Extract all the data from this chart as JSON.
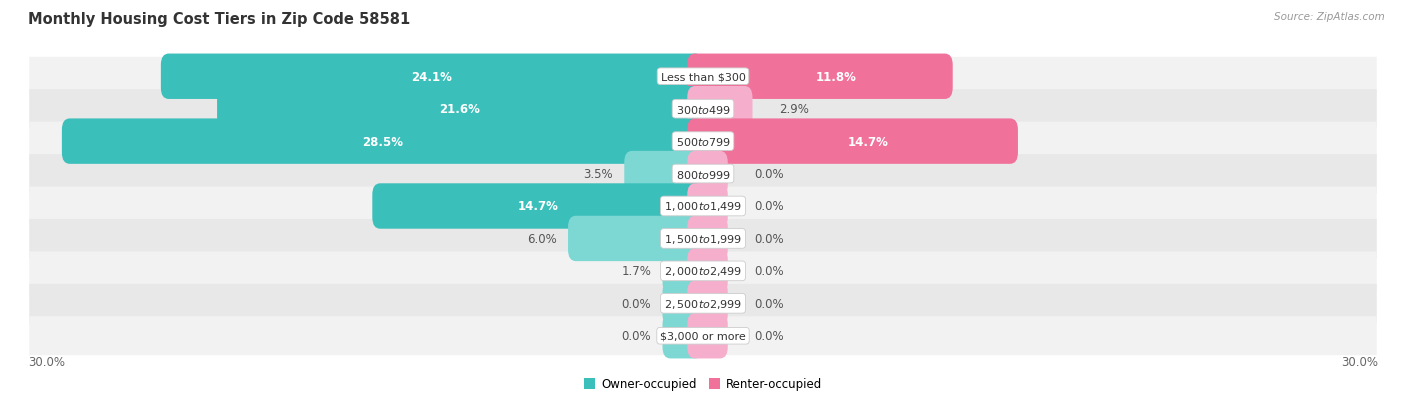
{
  "title": "Monthly Housing Cost Tiers in Zip Code 58581",
  "source": "Source: ZipAtlas.com",
  "categories": [
    "Less than $300",
    "$300 to $499",
    "$500 to $799",
    "$800 to $999",
    "$1,000 to $1,499",
    "$1,500 to $1,999",
    "$2,000 to $2,499",
    "$2,500 to $2,999",
    "$3,000 or more"
  ],
  "owner_values": [
    24.1,
    21.6,
    28.5,
    3.5,
    14.7,
    6.0,
    1.7,
    0.0,
    0.0
  ],
  "renter_values": [
    11.8,
    2.9,
    14.7,
    0.0,
    0.0,
    0.0,
    0.0,
    0.0,
    0.0
  ],
  "owner_color_dark": "#3BBFBA",
  "owner_color_light": "#7DD8D4",
  "renter_color_dark": "#F0719A",
  "renter_color_light": "#F5AECB",
  "row_bg_light": "#F2F2F2",
  "row_bg_dark": "#E8E8E8",
  "max_value": 30.0,
  "stub_size": 1.8,
  "legend_owner": "Owner-occupied",
  "legend_renter": "Renter-occupied"
}
